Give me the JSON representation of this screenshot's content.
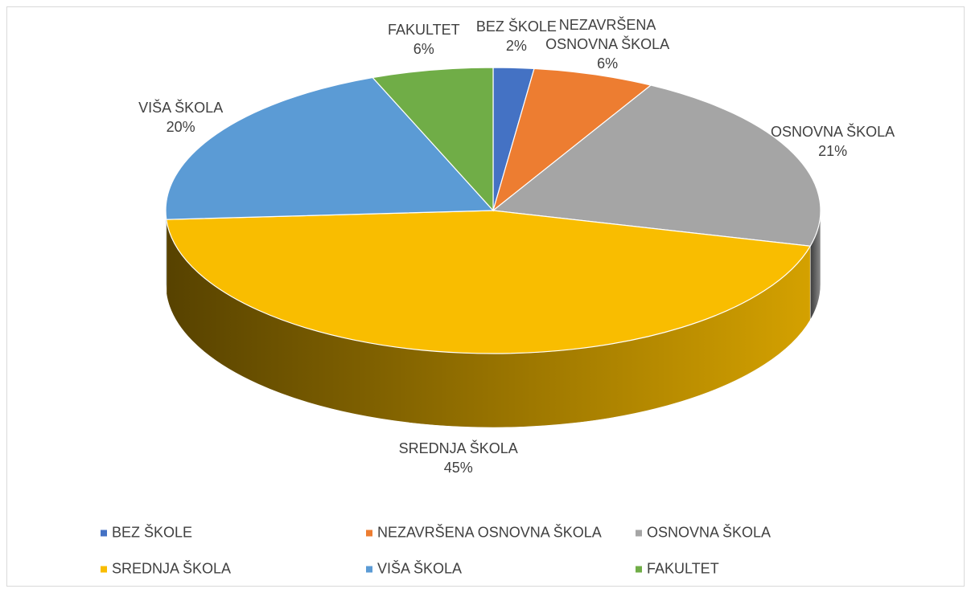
{
  "chart_data": {
    "type": "pie",
    "categories": [
      "BEZ ŠKOLE",
      "NEZAVRŠENA OSNOVNA ŠKOLA",
      "OSNOVNA ŠKOLA",
      "SREDNJA ŠKOLA",
      "VIŠA ŠKOLA",
      "FAKULTET"
    ],
    "values": [
      2,
      6,
      21,
      45,
      20,
      6
    ],
    "value_labels": [
      "2%",
      "6%",
      "21%",
      "45%",
      "20%",
      "6%"
    ],
    "colors": [
      "#4472c4",
      "#ed7d31",
      "#a5a5a5",
      "#f9bd00",
      "#5b9bd5",
      "#70ad47"
    ],
    "legend": "bottom"
  }
}
